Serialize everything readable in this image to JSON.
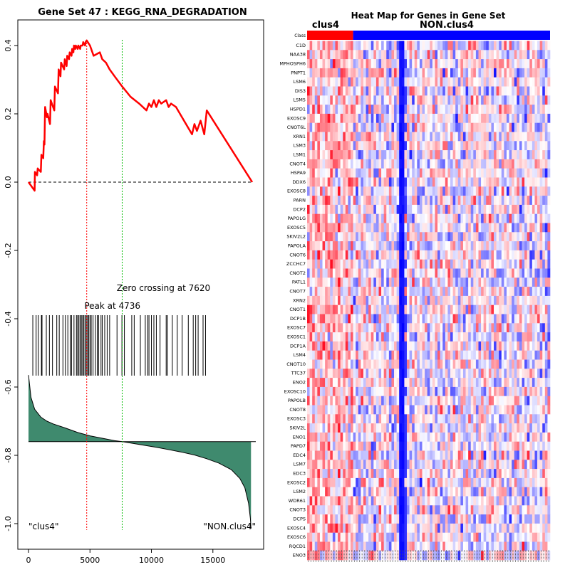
{
  "left_panel": {
    "title": "Gene Set  47 : KEGG_RNA_DEGRADATION",
    "peak_label": "Peak at 4736",
    "zero_label": "Zero crossing at 7620",
    "left_group_label": "\"clus4\"",
    "right_group_label": "\"NON.clus4\""
  },
  "right_panel": {
    "title": "Heat Map for Genes in Gene Set",
    "class_label": "Class",
    "group1_label": "clus4",
    "group2_label": "NON.clus4"
  },
  "colors": {
    "es_line": "#ff0000",
    "peak_line": "#ff0000",
    "zero_line": "#00bb00",
    "metric_fill": "#3f8a6e",
    "class_group1": "#ff0000",
    "class_group2": "#0000ff"
  },
  "chart_data": [
    {
      "type": "line",
      "title": "Gene Set  47 : KEGG_RNA_DEGRADATION",
      "xlabel": "",
      "ylabel": "",
      "xlim": [
        0,
        18500
      ],
      "ylim": [
        -1.05,
        0.47
      ],
      "xticks": [
        0,
        5000,
        10000,
        15000
      ],
      "yticks": [
        0.4,
        0.2,
        0.0,
        -0.2,
        -0.4,
        -0.6,
        -0.8,
        -1.0
      ],
      "ytick_labels": [
        "0.4",
        "0.2",
        "0.0",
        "-0.2",
        "-0.4",
        "-0.6",
        "-0.8",
        "-1.0"
      ],
      "peak_x": 4736,
      "zero_crossing_x": 7620,
      "running_es": {
        "x": [
          0,
          500,
          520,
          700,
          750,
          1000,
          1050,
          1200,
          1250,
          1300,
          1350,
          1500,
          1550,
          1750,
          1800,
          2100,
          2150,
          2400,
          2450,
          2600,
          2650,
          2900,
          2950,
          3100,
          3150,
          3300,
          3350,
          3500,
          3550,
          3650,
          3700,
          3800,
          3850,
          4000,
          4050,
          4200,
          4250,
          4400,
          4450,
          4600,
          4650,
          4736,
          5000,
          5300,
          5800,
          6000,
          6300,
          6600,
          7000,
          7620,
          8300,
          9000,
          9600,
          9800,
          10000,
          10200,
          10400,
          10500,
          10600,
          10800,
          11200,
          11400,
          11600,
          12000,
          13300,
          13500,
          13700,
          14000,
          14300,
          14500,
          18200
        ],
        "y": [
          0.0,
          -0.025,
          0.03,
          0.02,
          0.04,
          0.03,
          0.08,
          0.07,
          0.12,
          0.11,
          0.22,
          0.19,
          0.2,
          0.17,
          0.24,
          0.21,
          0.28,
          0.26,
          0.33,
          0.31,
          0.35,
          0.33,
          0.36,
          0.34,
          0.37,
          0.36,
          0.38,
          0.37,
          0.39,
          0.38,
          0.4,
          0.39,
          0.4,
          0.39,
          0.4,
          0.39,
          0.4,
          0.4,
          0.41,
          0.4,
          0.41,
          0.415,
          0.4,
          0.37,
          0.38,
          0.36,
          0.35,
          0.33,
          0.31,
          0.28,
          0.25,
          0.23,
          0.21,
          0.23,
          0.22,
          0.24,
          0.22,
          0.23,
          0.24,
          0.23,
          0.24,
          0.22,
          0.23,
          0.22,
          0.14,
          0.17,
          0.15,
          0.18,
          0.14,
          0.21,
          0.0
        ]
      },
      "hits": [
        350,
        620,
        800,
        1050,
        1100,
        1450,
        1700,
        1950,
        2300,
        2500,
        2800,
        3000,
        3200,
        3400,
        3500,
        3700,
        3900,
        4000,
        4100,
        4200,
        4300,
        4400,
        4500,
        4600,
        4700,
        4800,
        4900,
        5000,
        5100,
        5250,
        5450,
        5600,
        5700,
        5900,
        6000,
        6200,
        6400,
        6600,
        7200,
        7600,
        7800,
        8400,
        8600,
        9100,
        9500,
        9700,
        9800,
        10000,
        10200,
        10400,
        10700,
        11200,
        11300,
        11700,
        12100,
        12500,
        13000,
        13400,
        13600,
        13800,
        14200,
        14400
      ],
      "ranked_metric": {
        "x": [
          0,
          200,
          500,
          1000,
          1500,
          2000,
          3000,
          4000,
          5000,
          6000,
          7000,
          7620,
          8500,
          9500,
          10500,
          11500,
          12500,
          13500,
          14500,
          15500,
          16500,
          17200,
          17600,
          17900,
          18050,
          18100
        ],
        "y": [
          -0.565,
          -0.63,
          -0.665,
          -0.688,
          -0.7,
          -0.708,
          -0.72,
          -0.733,
          -0.743,
          -0.75,
          -0.757,
          -0.76,
          -0.765,
          -0.771,
          -0.777,
          -0.784,
          -0.791,
          -0.799,
          -0.81,
          -0.823,
          -0.842,
          -0.868,
          -0.895,
          -0.94,
          -0.985,
          -1.015
        ],
        "baseline": -0.76
      }
    },
    {
      "type": "heatmap",
      "title": "Heat Map for Genes in Gene Set",
      "class_row": "Class",
      "groups": [
        "clus4",
        "NON.clus4"
      ],
      "group_sample_counts": [
        18,
        77
      ],
      "row_labels": [
        "C1D",
        "NAA38",
        "MPHOSPH6",
        "PNPT1",
        "LSM6",
        "DIS3",
        "LSM5",
        "HSPD1",
        "EXOSC9",
        "CNOT6L",
        "XRN1",
        "LSM3",
        "LSM1",
        "CNOT4",
        "HSPA9",
        "DDX6",
        "EXOSC8",
        "PARN",
        "DCP2",
        "PAPOLG",
        "EXOSC5",
        "SKIV2L2",
        "PAPOLA",
        "CNOT6",
        "ZCCHC7",
        "CNOT2",
        "PATL1",
        "CNOT7",
        "XRN2",
        "CNOT1",
        "DCP1B",
        "EXOSC7",
        "EXOSC1",
        "DCP1A",
        "LSM4",
        "CNOT10",
        "TTC37",
        "ENO2",
        "EXOSC10",
        "PAPOLB",
        "CNOT8",
        "EXOSC3",
        "SKIV2L",
        "ENO1",
        "PAPD7",
        "EDC4",
        "LSM7",
        "EDC3",
        "EXOSC2",
        "LSM2",
        "WDR61",
        "CNOT3",
        "DCPS",
        "EXOSC4",
        "EXOSC6",
        "RQCD1",
        "ENO3"
      ]
    }
  ]
}
